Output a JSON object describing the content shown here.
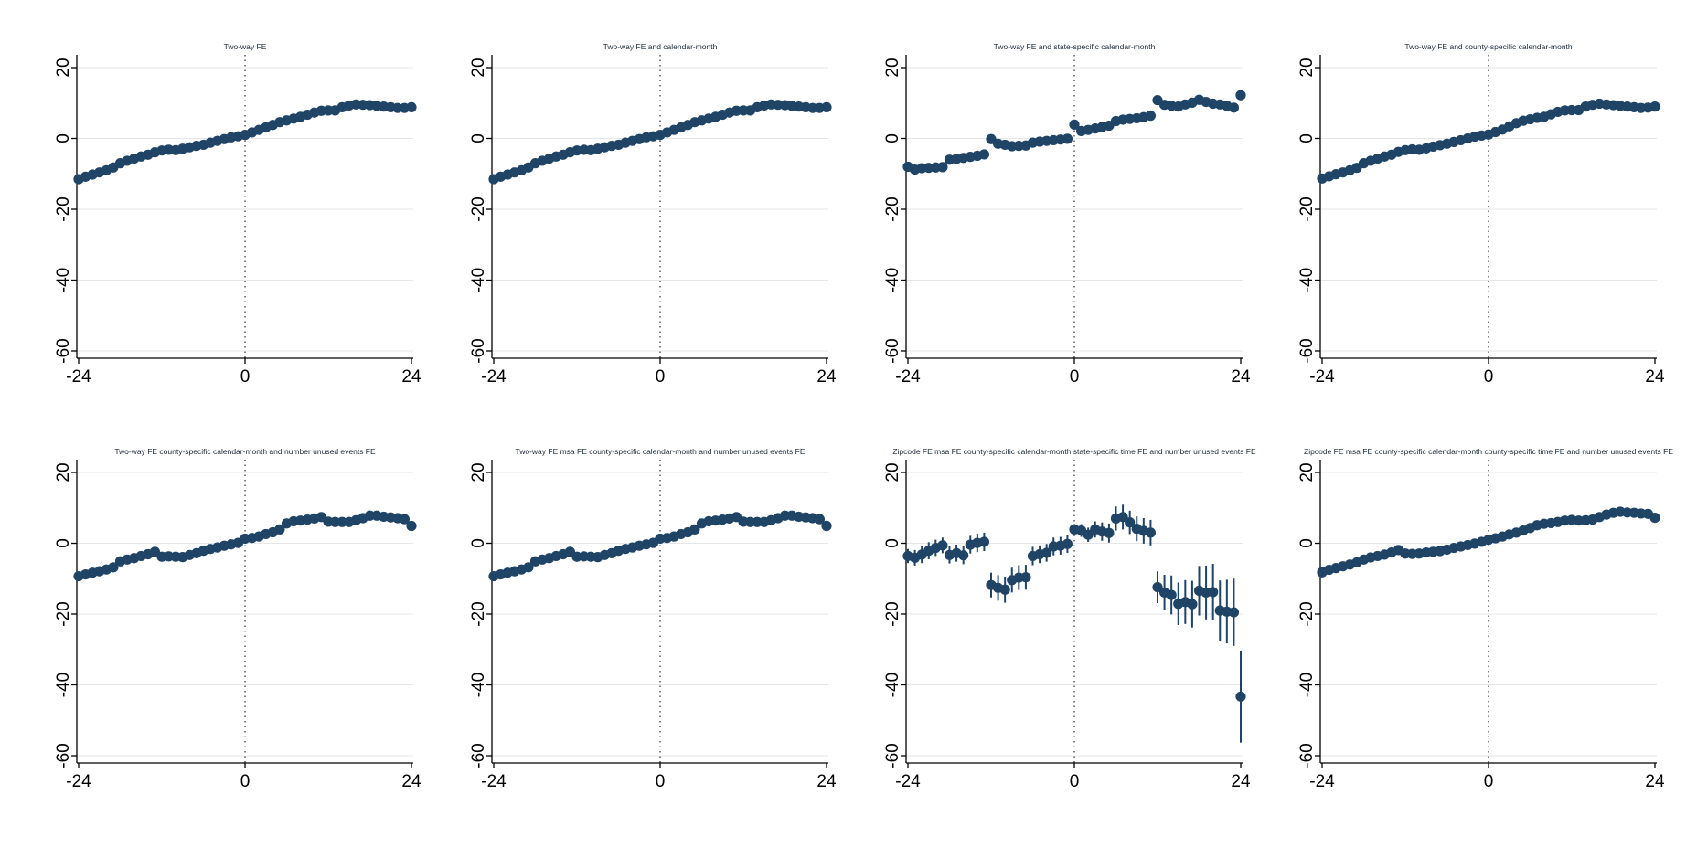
{
  "figure": {
    "marker_color": "#1f4466",
    "ci_color": "#1f4466"
  },
  "chart_data": [
    {
      "type": "scatter",
      "title": "Two-way FE",
      "xlabel": "",
      "ylabel": "",
      "xlim": [
        -24,
        24
      ],
      "ylim": [
        -60,
        20
      ],
      "x_ticks": [
        "-24",
        "0",
        "24"
      ],
      "y_ticks": [
        "20",
        "0",
        "-20",
        "-40",
        "-60"
      ],
      "grid": true,
      "reference_line_x": 0,
      "x": [
        -24,
        -23,
        -22,
        -21,
        -20,
        -19,
        -18,
        -17,
        -16,
        -15,
        -14,
        -13,
        -12,
        -11,
        -10,
        -9,
        -8,
        -7,
        -6,
        -5,
        -4,
        -3,
        -2,
        -1,
        0,
        1,
        2,
        3,
        4,
        5,
        6,
        7,
        8,
        9,
        10,
        11,
        12,
        13,
        14,
        15,
        16,
        17,
        18,
        19,
        20,
        21,
        22,
        23,
        24
      ],
      "y": [
        -11.5,
        -10.8,
        -10.2,
        -9.6,
        -9.0,
        -8.2,
        -7.0,
        -6.3,
        -5.7,
        -5.1,
        -4.6,
        -3.9,
        -3.4,
        -3.2,
        -3.3,
        -2.9,
        -2.5,
        -2.1,
        -1.8,
        -1.2,
        -0.7,
        -0.2,
        0.3,
        0.6,
        1.0,
        1.7,
        2.4,
        3.1,
        3.8,
        4.6,
        5.1,
        5.6,
        6.1,
        6.7,
        7.3,
        7.8,
        7.9,
        7.9,
        8.8,
        9.3,
        9.6,
        9.5,
        9.4,
        9.2,
        9.0,
        8.8,
        8.6,
        8.6,
        8.8
      ],
      "ci": [
        0.6,
        0.6,
        0.6,
        0.6,
        0.6,
        0.6,
        0.6,
        0.6,
        0.6,
        0.6,
        0.6,
        0.6,
        0.6,
        0.6,
        0.6,
        0.6,
        0.6,
        0.6,
        0.6,
        0.6,
        0.6,
        0.6,
        0.6,
        0.6,
        0.6,
        0.6,
        0.6,
        0.6,
        0.6,
        0.6,
        0.6,
        0.6,
        0.6,
        0.6,
        0.6,
        0.6,
        0.6,
        0.6,
        0.6,
        0.6,
        0.6,
        0.6,
        0.6,
        0.6,
        0.6,
        0.6,
        0.6,
        0.6,
        0.6
      ]
    },
    {
      "type": "scatter",
      "title": "Two-way FE and calendar-month",
      "xlabel": "",
      "ylabel": "",
      "xlim": [
        -24,
        24
      ],
      "ylim": [
        -60,
        20
      ],
      "x_ticks": [
        "-24",
        "0",
        "24"
      ],
      "y_ticks": [
        "20",
        "0",
        "-20",
        "-40",
        "-60"
      ],
      "grid": true,
      "reference_line_x": 0,
      "x": [
        -24,
        -23,
        -22,
        -21,
        -20,
        -19,
        -18,
        -17,
        -16,
        -15,
        -14,
        -13,
        -12,
        -11,
        -10,
        -9,
        -8,
        -7,
        -6,
        -5,
        -4,
        -3,
        -2,
        -1,
        0,
        1,
        2,
        3,
        4,
        5,
        6,
        7,
        8,
        9,
        10,
        11,
        12,
        13,
        14,
        15,
        16,
        17,
        18,
        19,
        20,
        21,
        22,
        23,
        24
      ],
      "y": [
        -11.5,
        -10.8,
        -10.2,
        -9.6,
        -9.0,
        -8.2,
        -7.0,
        -6.3,
        -5.7,
        -5.1,
        -4.6,
        -3.9,
        -3.4,
        -3.2,
        -3.3,
        -2.9,
        -2.5,
        -2.1,
        -1.8,
        -1.2,
        -0.7,
        -0.2,
        0.3,
        0.6,
        1.0,
        1.7,
        2.4,
        3.1,
        3.8,
        4.6,
        5.1,
        5.6,
        6.1,
        6.7,
        7.3,
        7.8,
        7.9,
        7.9,
        8.8,
        9.3,
        9.6,
        9.5,
        9.4,
        9.2,
        9.0,
        8.8,
        8.6,
        8.6,
        8.8
      ],
      "ci": [
        0.6,
        0.6,
        0.6,
        0.6,
        0.6,
        0.6,
        0.6,
        0.6,
        0.6,
        0.6,
        0.6,
        0.6,
        0.6,
        0.6,
        0.6,
        0.6,
        0.6,
        0.6,
        0.6,
        0.6,
        0.6,
        0.6,
        0.6,
        0.6,
        0.6,
        0.6,
        0.6,
        0.6,
        0.6,
        0.6,
        0.6,
        0.6,
        0.6,
        0.6,
        0.6,
        0.6,
        0.6,
        0.6,
        0.6,
        0.6,
        0.6,
        0.6,
        0.6,
        0.6,
        0.6,
        0.6,
        0.6,
        0.6,
        0.6
      ]
    },
    {
      "type": "scatter",
      "title": "Two-way FE and state-specific calendar-month",
      "xlabel": "",
      "ylabel": "",
      "xlim": [
        -24,
        24
      ],
      "ylim": [
        -60,
        20
      ],
      "x_ticks": [
        "-24",
        "0",
        "24"
      ],
      "y_ticks": [
        "20",
        "0",
        "-20",
        "-40",
        "-60"
      ],
      "grid": true,
      "reference_line_x": 0,
      "x": [
        -24,
        -23,
        -22,
        -21,
        -20,
        -19,
        -18,
        -17,
        -16,
        -15,
        -14,
        -13,
        -12,
        -11,
        -10,
        -9,
        -8,
        -7,
        -6,
        -5,
        -4,
        -3,
        -2,
        -1,
        0,
        1,
        2,
        3,
        4,
        5,
        6,
        7,
        8,
        9,
        10,
        11,
        12,
        13,
        14,
        15,
        16,
        17,
        18,
        19,
        20,
        21,
        22,
        23,
        24
      ],
      "y": [
        -8.0,
        -8.8,
        -8.4,
        -8.3,
        -8.2,
        -8.1,
        -6.0,
        -5.8,
        -5.5,
        -5.2,
        -4.9,
        -4.5,
        -0.2,
        -1.5,
        -1.8,
        -2.2,
        -2.1,
        -2.0,
        -1.2,
        -0.9,
        -0.7,
        -0.5,
        -0.3,
        -0.1,
        3.9,
        2.1,
        2.4,
        2.8,
        3.2,
        3.6,
        4.9,
        5.3,
        5.5,
        5.7,
        6.0,
        6.4,
        10.8,
        9.5,
        9.2,
        9.0,
        9.6,
        10.1,
        10.9,
        10.3,
        9.8,
        9.6,
        9.2,
        8.7,
        12.2
      ],
      "ci": [
        0.6,
        0.6,
        0.6,
        0.6,
        0.6,
        0.6,
        0.6,
        0.6,
        0.6,
        0.6,
        0.6,
        0.6,
        0.6,
        0.6,
        0.6,
        0.6,
        0.6,
        0.6,
        0.6,
        0.6,
        0.6,
        0.6,
        0.6,
        0.6,
        0.6,
        0.6,
        0.6,
        0.6,
        0.6,
        0.6,
        0.6,
        0.6,
        0.6,
        0.6,
        0.6,
        0.6,
        0.6,
        0.6,
        0.6,
        0.6,
        0.6,
        0.6,
        0.6,
        0.6,
        0.6,
        0.6,
        0.6,
        0.6,
        0.6
      ]
    },
    {
      "type": "scatter",
      "title": "Two-way FE and county-specific calendar-month",
      "xlabel": "",
      "ylabel": "",
      "xlim": [
        -24,
        24
      ],
      "ylim": [
        -60,
        20
      ],
      "x_ticks": [
        "-24",
        "0",
        "24"
      ],
      "y_ticks": [
        "20",
        "0",
        "-20",
        "-40",
        "-60"
      ],
      "grid": true,
      "reference_line_x": 0,
      "x": [
        -24,
        -23,
        -22,
        -21,
        -20,
        -19,
        -18,
        -17,
        -16,
        -15,
        -14,
        -13,
        -12,
        -11,
        -10,
        -9,
        -8,
        -7,
        -6,
        -5,
        -4,
        -3,
        -2,
        -1,
        0,
        1,
        2,
        3,
        4,
        5,
        6,
        7,
        8,
        9,
        10,
        11,
        12,
        13,
        14,
        15,
        16,
        17,
        18,
        19,
        20,
        21,
        22,
        23,
        24
      ],
      "y": [
        -11.3,
        -10.7,
        -10.1,
        -9.6,
        -9.0,
        -8.3,
        -7.0,
        -6.3,
        -5.7,
        -5.1,
        -4.6,
        -3.8,
        -3.3,
        -3.1,
        -3.2,
        -2.8,
        -2.3,
        -1.9,
        -1.5,
        -1.0,
        -0.5,
        0.0,
        0.5,
        0.8,
        1.1,
        1.8,
        2.5,
        3.4,
        4.3,
        5.0,
        5.4,
        5.8,
        6.1,
        6.8,
        7.5,
        7.9,
        8.0,
        8.0,
        9.0,
        9.5,
        9.8,
        9.6,
        9.4,
        9.2,
        9.0,
        8.8,
        8.6,
        8.7,
        9.0
      ],
      "ci": [
        0.6,
        0.6,
        0.6,
        0.6,
        0.6,
        0.6,
        0.6,
        0.6,
        0.6,
        0.6,
        0.6,
        0.6,
        0.6,
        0.6,
        0.6,
        0.6,
        0.6,
        0.6,
        0.6,
        0.6,
        0.6,
        0.6,
        0.6,
        0.6,
        0.6,
        0.6,
        0.6,
        0.6,
        0.6,
        0.6,
        0.6,
        0.6,
        0.6,
        0.6,
        0.6,
        0.6,
        0.6,
        0.6,
        0.6,
        0.6,
        0.6,
        0.6,
        0.6,
        0.6,
        0.6,
        0.6,
        0.6,
        0.6,
        0.6
      ]
    },
    {
      "type": "scatter",
      "title": "Two-way FE county-specific calendar-month and number unused events FE",
      "xlabel": "",
      "ylabel": "",
      "xlim": [
        -24,
        24
      ],
      "ylim": [
        -60,
        20
      ],
      "x_ticks": [
        "-24",
        "0",
        "24"
      ],
      "y_ticks": [
        "20",
        "0",
        "-20",
        "-40",
        "-60"
      ],
      "grid": true,
      "reference_line_x": 0,
      "x": [
        -24,
        -23,
        -22,
        -21,
        -20,
        -19,
        -18,
        -17,
        -16,
        -15,
        -14,
        -13,
        -12,
        -11,
        -10,
        -9,
        -8,
        -7,
        -6,
        -5,
        -4,
        -3,
        -2,
        -1,
        0,
        1,
        2,
        3,
        4,
        5,
        6,
        7,
        8,
        9,
        10,
        11,
        12,
        13,
        14,
        15,
        16,
        17,
        18,
        19,
        20,
        21,
        22,
        23,
        24
      ],
      "y": [
        -9.3,
        -8.8,
        -8.3,
        -7.9,
        -7.4,
        -6.8,
        -5.1,
        -4.6,
        -4.2,
        -3.6,
        -3.1,
        -2.4,
        -3.8,
        -3.7,
        -3.8,
        -3.9,
        -3.3,
        -2.8,
        -2.1,
        -1.6,
        -1.2,
        -0.7,
        -0.3,
        0.1,
        1.3,
        1.5,
        1.9,
        2.6,
        3.1,
        3.9,
        5.6,
        6.2,
        6.4,
        6.7,
        7.0,
        7.4,
        6.1,
        6.0,
        6.0,
        6.0,
        6.5,
        7.1,
        7.8,
        7.8,
        7.5,
        7.3,
        7.1,
        6.8,
        4.9
      ],
      "ci": [
        0.6,
        0.6,
        0.6,
        0.6,
        0.6,
        0.6,
        0.6,
        0.6,
        0.6,
        0.6,
        0.6,
        0.6,
        0.6,
        0.6,
        0.6,
        0.6,
        0.6,
        0.6,
        0.6,
        0.6,
        0.6,
        0.6,
        0.6,
        0.6,
        0.6,
        0.6,
        0.6,
        0.6,
        0.6,
        0.6,
        0.6,
        0.6,
        0.6,
        0.6,
        0.6,
        0.6,
        0.6,
        0.6,
        0.6,
        0.6,
        0.6,
        0.6,
        0.6,
        0.6,
        0.6,
        0.6,
        0.6,
        0.6,
        0.6
      ]
    },
    {
      "type": "scatter",
      "title": "Two-way FE msa FE county-specific calendar-month and number unused events FE",
      "xlabel": "",
      "ylabel": "",
      "xlim": [
        -24,
        24
      ],
      "ylim": [
        -60,
        20
      ],
      "x_ticks": [
        "-24",
        "0",
        "24"
      ],
      "y_ticks": [
        "20",
        "0",
        "-20",
        "-40",
        "-60"
      ],
      "grid": true,
      "reference_line_x": 0,
      "x": [
        -24,
        -23,
        -22,
        -21,
        -20,
        -19,
        -18,
        -17,
        -16,
        -15,
        -14,
        -13,
        -12,
        -11,
        -10,
        -9,
        -8,
        -7,
        -6,
        -5,
        -4,
        -3,
        -2,
        -1,
        0,
        1,
        2,
        3,
        4,
        5,
        6,
        7,
        8,
        9,
        10,
        11,
        12,
        13,
        14,
        15,
        16,
        17,
        18,
        19,
        20,
        21,
        22,
        23,
        24
      ],
      "y": [
        -9.3,
        -8.8,
        -8.3,
        -7.9,
        -7.4,
        -6.8,
        -5.1,
        -4.6,
        -4.2,
        -3.6,
        -3.1,
        -2.4,
        -3.8,
        -3.7,
        -3.8,
        -3.9,
        -3.3,
        -2.8,
        -2.1,
        -1.6,
        -1.2,
        -0.7,
        -0.3,
        0.1,
        1.3,
        1.5,
        1.9,
        2.6,
        3.1,
        3.9,
        5.6,
        6.2,
        6.4,
        6.7,
        7.0,
        7.4,
        6.1,
        6.0,
        6.0,
        6.0,
        6.5,
        7.1,
        7.8,
        7.8,
        7.5,
        7.3,
        7.1,
        6.8,
        4.9
      ],
      "ci": [
        0.6,
        0.6,
        0.6,
        0.6,
        0.6,
        0.6,
        0.6,
        0.6,
        0.6,
        0.6,
        0.6,
        0.6,
        0.6,
        0.6,
        0.6,
        0.6,
        0.6,
        0.6,
        0.6,
        0.6,
        0.6,
        0.6,
        0.6,
        0.6,
        0.6,
        0.6,
        0.6,
        0.6,
        0.6,
        0.6,
        0.6,
        0.6,
        0.6,
        0.6,
        0.6,
        0.6,
        0.6,
        0.6,
        0.6,
        0.6,
        0.6,
        0.6,
        0.6,
        0.6,
        0.6,
        0.6,
        0.6,
        0.6,
        0.6
      ]
    },
    {
      "type": "scatter",
      "title": "Zipcode FE msa FE county-specific calendar-month state-specific time FE and number unused events FE",
      "xlabel": "",
      "ylabel": "",
      "xlim": [
        -24,
        24
      ],
      "ylim": [
        -60,
        20
      ],
      "x_ticks": [
        "-24",
        "0",
        "24"
      ],
      "y_ticks": [
        "20",
        "0",
        "-20",
        "-40",
        "-60"
      ],
      "grid": true,
      "reference_line_x": 0,
      "x": [
        -24,
        -23,
        -22,
        -21,
        -20,
        -19,
        -18,
        -17,
        -16,
        -15,
        -14,
        -13,
        -12,
        -11,
        -10,
        -9,
        -8,
        -7,
        -6,
        -5,
        -4,
        -3,
        -2,
        -1,
        0,
        1,
        2,
        3,
        4,
        5,
        6,
        7,
        8,
        9,
        10,
        11,
        12,
        13,
        14,
        15,
        16,
        17,
        18,
        19,
        20,
        21,
        22,
        23,
        24
      ],
      "y": [
        -3.6,
        -4.1,
        -3.2,
        -2.1,
        -1.3,
        -0.6,
        -3.3,
        -2.8,
        -3.4,
        -0.4,
        0.1,
        0.4,
        -11.8,
        -12.6,
        -13.1,
        -10.4,
        -9.7,
        -9.6,
        -3.6,
        -3.1,
        -2.7,
        -0.9,
        -0.7,
        -0.2,
        3.9,
        3.6,
        2.4,
        3.9,
        3.3,
        2.9,
        7.0,
        7.4,
        5.9,
        4.1,
        3.5,
        3.0,
        -12.4,
        -13.9,
        -14.6,
        -17.1,
        -16.6,
        -17.2,
        -13.4,
        -13.9,
        -13.8,
        -19.0,
        -19.3,
        -19.5,
        -43.3
      ],
      "ci": [
        2.0,
        2.2,
        2.4,
        2.4,
        2.3,
        2.2,
        2.4,
        2.4,
        2.5,
        2.5,
        2.6,
        2.6,
        3.5,
        3.6,
        3.7,
        3.5,
        3.5,
        3.5,
        2.6,
        2.5,
        2.5,
        2.5,
        2.5,
        2.5,
        1.5,
        1.8,
        2.0,
        2.3,
        2.6,
        2.7,
        3.4,
        3.5,
        3.3,
        3.5,
        3.6,
        3.6,
        4.5,
        5.0,
        5.5,
        6.0,
        6.2,
        6.6,
        7.0,
        7.6,
        8.0,
        8.5,
        9.0,
        9.5,
        13.0
      ]
    },
    {
      "type": "scatter",
      "title": "Zipcode FE msa FE county-specific calendar-month county-specific time FE and number unused events FE",
      "xlabel": "",
      "ylabel": "",
      "xlim": [
        -24,
        24
      ],
      "ylim": [
        -60,
        20
      ],
      "x_ticks": [
        "-24",
        "0",
        "24"
      ],
      "y_ticks": [
        "20",
        "0",
        "-20",
        "-40",
        "-60"
      ],
      "grid": true,
      "reference_line_x": 0,
      "x": [
        -24,
        -23,
        -22,
        -21,
        -20,
        -19,
        -18,
        -17,
        -16,
        -15,
        -14,
        -13,
        -12,
        -11,
        -10,
        -9,
        -8,
        -7,
        -6,
        -5,
        -4,
        -3,
        -2,
        -1,
        0,
        1,
        2,
        3,
        4,
        5,
        6,
        7,
        8,
        9,
        10,
        11,
        12,
        13,
        14,
        15,
        16,
        17,
        18,
        19,
        20,
        21,
        22,
        23,
        24
      ],
      "y": [
        -8.2,
        -7.5,
        -7.0,
        -6.5,
        -6.0,
        -5.4,
        -4.6,
        -4.0,
        -3.6,
        -3.2,
        -2.6,
        -1.9,
        -2.9,
        -3.0,
        -2.9,
        -2.6,
        -2.4,
        -2.2,
        -1.8,
        -1.3,
        -0.9,
        -0.5,
        -0.1,
        0.4,
        1.0,
        1.4,
        1.9,
        2.5,
        3.0,
        3.6,
        4.3,
        5.1,
        5.5,
        5.7,
        6.0,
        6.4,
        6.6,
        6.4,
        6.5,
        6.7,
        7.4,
        8.1,
        8.6,
        8.9,
        8.7,
        8.6,
        8.4,
        8.3,
        7.2
      ],
      "ci": [
        0.6,
        0.6,
        0.6,
        0.6,
        0.6,
        0.6,
        0.6,
        0.6,
        0.6,
        0.6,
        0.6,
        0.6,
        0.6,
        0.6,
        0.6,
        0.6,
        0.6,
        0.6,
        0.6,
        0.6,
        0.6,
        0.6,
        0.6,
        0.6,
        0.6,
        0.6,
        0.6,
        0.6,
        0.6,
        0.6,
        0.6,
        0.6,
        0.6,
        0.6,
        0.6,
        0.6,
        0.6,
        0.6,
        0.6,
        0.6,
        0.6,
        0.6,
        0.6,
        0.6,
        0.6,
        0.6,
        0.6,
        0.6,
        0.6
      ]
    }
  ]
}
